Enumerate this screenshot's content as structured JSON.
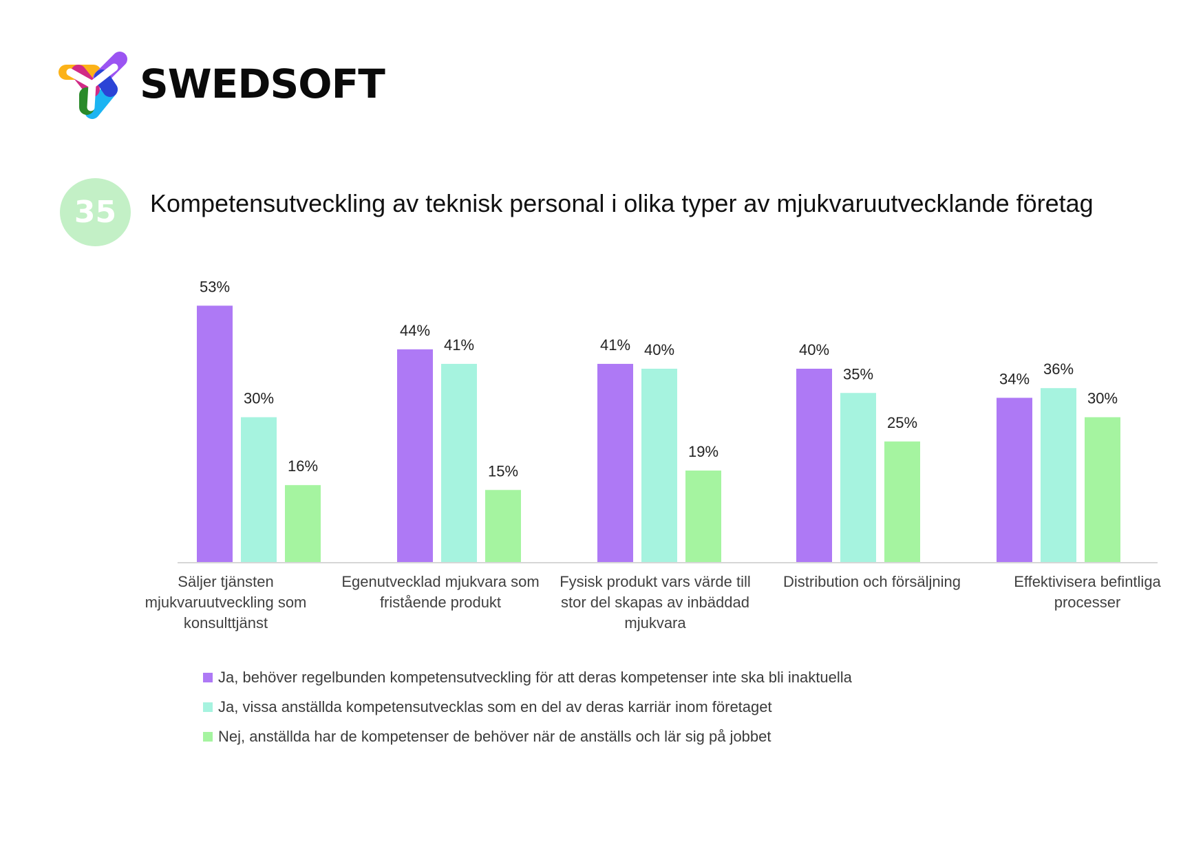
{
  "brand": {
    "name": "SWEDSOFT"
  },
  "badge": {
    "number": "35"
  },
  "colors": {
    "series_1": "#ae79f5",
    "series_2": "#a6f3df",
    "series_3": "#a5f4a0",
    "axis": "#d6d6d6",
    "text": "#404040"
  },
  "chart_data": {
    "type": "bar",
    "title": "Kompetensutveckling av teknisk personal i olika typer av mjukvaruutvecklande företag",
    "categories": [
      [
        "Säljer tjänsten",
        "mjukvaruutveckling som",
        "konsulttjänst"
      ],
      [
        "Egenutvecklad mjukvara som",
        "fristående produkt"
      ],
      [
        "Fysisk produkt vars värde till",
        "stor del skapas av inbäddad",
        "mjukvara"
      ],
      [
        "Distribution och försäljning"
      ],
      [
        "Effektivisera befintliga",
        "processer"
      ]
    ],
    "series": [
      {
        "name": "Ja, behöver regelbunden kompetensutveckling för att deras kompetenser inte ska bli inaktuella",
        "values": [
          53,
          44,
          41,
          40,
          34
        ],
        "labels": [
          "53%",
          "44%",
          "41%",
          "40%",
          "34%"
        ]
      },
      {
        "name": "Ja, vissa anställda kompetensutvecklas som en del av deras karriär inom företaget",
        "values": [
          30,
          41,
          40,
          35,
          36
        ],
        "labels": [
          "30%",
          "41%",
          "40%",
          "35%",
          "36%"
        ]
      },
      {
        "name": "Nej, anställda har de kompetenser de behöver när de anställs och lär sig på jobbet",
        "values": [
          16,
          15,
          19,
          25,
          30
        ],
        "labels": [
          "16%",
          "15%",
          "19%",
          "25%",
          "30%"
        ]
      }
    ],
    "ylim": [
      0,
      60
    ],
    "grid": false,
    "legend_position": "bottom-left",
    "xlabel": "",
    "ylabel": ""
  }
}
